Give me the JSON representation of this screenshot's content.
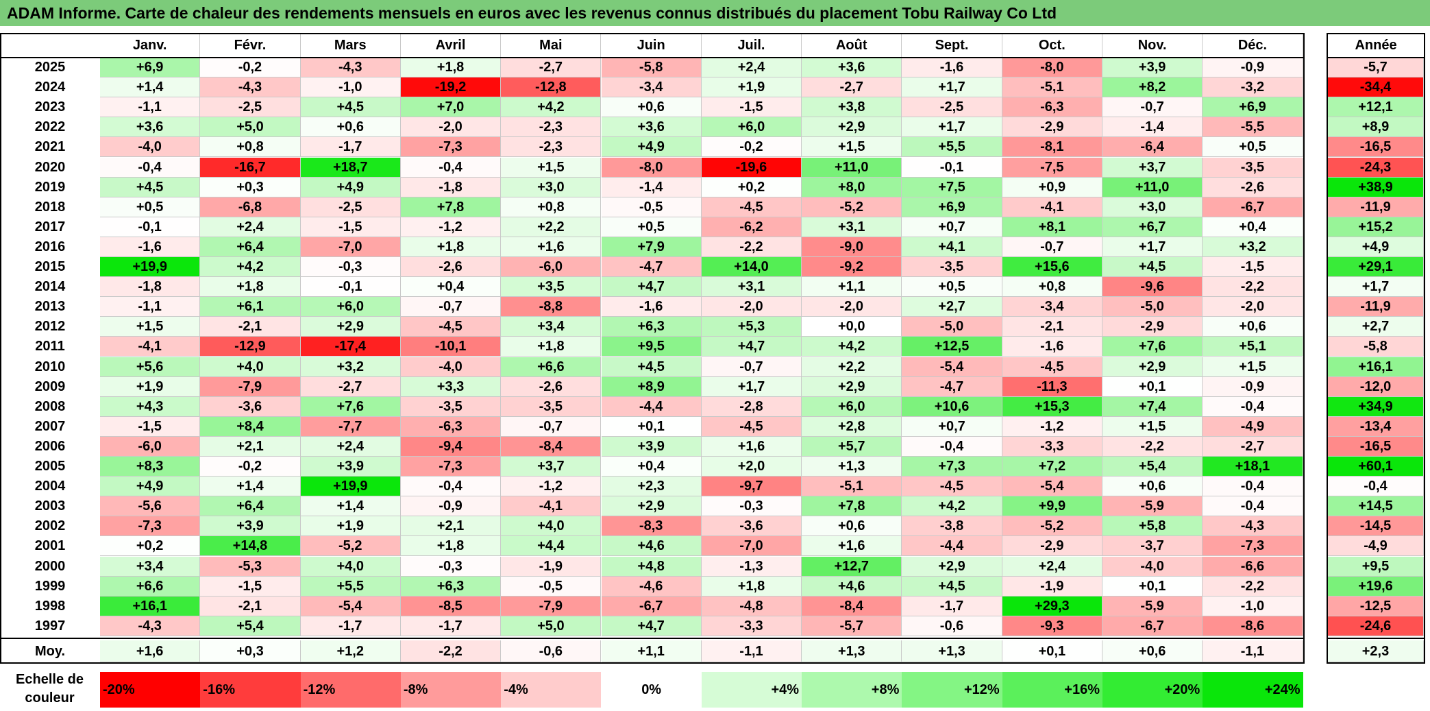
{
  "title": "ADAM Informe. Carte de chaleur des rendements mensuels en euros avec les revenus connus distribués du placement Tobu Railway Co Ltd",
  "chart_data": {
    "type": "heatmap",
    "title": "ADAM Informe. Carte de chaleur des rendements mensuels en euros avec les revenus connus distribués du placement Tobu Railway Co Ltd",
    "months": [
      "Janv.",
      "Févr.",
      "Mars",
      "Avril",
      "Mai",
      "Juin",
      "Juil.",
      "Août",
      "Sept.",
      "Oct.",
      "Nov.",
      "Déc."
    ],
    "year_header": "Année",
    "rows": [
      {
        "year": "2025",
        "values": [
          "+6,9",
          "-0,2",
          "-4,3",
          "+1,8",
          "-2,7",
          "-5,8",
          "+2,4",
          "+3,6",
          "-1,6",
          "-8,0",
          "+3,9",
          "-0,9"
        ],
        "annual": "-5,7"
      },
      {
        "year": "2024",
        "values": [
          "+1,4",
          "-4,3",
          "-1,0",
          "-19,2",
          "-12,8",
          "-3,4",
          "+1,9",
          "-2,7",
          "+1,7",
          "-5,1",
          "+8,2",
          "-3,2"
        ],
        "annual": "-34,4"
      },
      {
        "year": "2023",
        "values": [
          "-1,1",
          "-2,5",
          "+4,5",
          "+7,0",
          "+4,2",
          "+0,6",
          "-1,5",
          "+3,8",
          "-2,5",
          "-6,3",
          "-0,7",
          "+6,9"
        ],
        "annual": "+12,1"
      },
      {
        "year": "2022",
        "values": [
          "+3,6",
          "+5,0",
          "+0,6",
          "-2,0",
          "-2,3",
          "+3,6",
          "+6,0",
          "+2,9",
          "+1,7",
          "-2,9",
          "-1,4",
          "-5,5"
        ],
        "annual": "+8,9"
      },
      {
        "year": "2021",
        "values": [
          "-4,0",
          "+0,8",
          "-1,7",
          "-7,3",
          "-2,3",
          "+4,9",
          "-0,2",
          "+1,5",
          "+5,5",
          "-8,1",
          "-6,4",
          "+0,5"
        ],
        "annual": "-16,5"
      },
      {
        "year": "2020",
        "values": [
          "-0,4",
          "-16,7",
          "+18,7",
          "-0,4",
          "+1,5",
          "-8,0",
          "-19,6",
          "+11,0",
          "-0,1",
          "-7,5",
          "+3,7",
          "-3,5"
        ],
        "annual": "-24,3"
      },
      {
        "year": "2019",
        "values": [
          "+4,5",
          "+0,3",
          "+4,9",
          "-1,8",
          "+3,0",
          "-1,4",
          "+0,2",
          "+8,0",
          "+7,5",
          "+0,9",
          "+11,0",
          "-2,6"
        ],
        "annual": "+38,9"
      },
      {
        "year": "2018",
        "values": [
          "+0,5",
          "-6,8",
          "-2,5",
          "+7,8",
          "+0,8",
          "-0,5",
          "-4,5",
          "-5,2",
          "+6,9",
          "-4,1",
          "+3,0",
          "-6,7"
        ],
        "annual": "-11,9"
      },
      {
        "year": "2017",
        "values": [
          "-0,1",
          "+2,4",
          "-1,5",
          "-1,2",
          "+2,2",
          "+0,5",
          "-6,2",
          "+3,1",
          "+0,7",
          "+8,1",
          "+6,7",
          "+0,4"
        ],
        "annual": "+15,2"
      },
      {
        "year": "2016",
        "values": [
          "-1,6",
          "+6,4",
          "-7,0",
          "+1,8",
          "+1,6",
          "+7,9",
          "-2,2",
          "-9,0",
          "+4,1",
          "-0,7",
          "+1,7",
          "+3,2"
        ],
        "annual": "+4,9"
      },
      {
        "year": "2015",
        "values": [
          "+19,9",
          "+4,2",
          "-0,3",
          "-2,6",
          "-6,0",
          "-4,7",
          "+14,0",
          "-9,2",
          "-3,5",
          "+15,6",
          "+4,5",
          "-1,5"
        ],
        "annual": "+29,1"
      },
      {
        "year": "2014",
        "values": [
          "-1,8",
          "+1,8",
          "-0,1",
          "+0,4",
          "+3,5",
          "+4,7",
          "+3,1",
          "+1,1",
          "+0,5",
          "+0,8",
          "-9,6",
          "-2,2"
        ],
        "annual": "+1,7"
      },
      {
        "year": "2013",
        "values": [
          "-1,1",
          "+6,1",
          "+6,0",
          "-0,7",
          "-8,8",
          "-1,6",
          "-2,0",
          "-2,0",
          "+2,7",
          "-3,4",
          "-5,0",
          "-2,0"
        ],
        "annual": "-11,9"
      },
      {
        "year": "2012",
        "values": [
          "+1,5",
          "-2,1",
          "+2,9",
          "-4,5",
          "+3,4",
          "+6,3",
          "+5,3",
          "+0,0",
          "-5,0",
          "-2,1",
          "-2,9",
          "+0,6"
        ],
        "annual": "+2,7"
      },
      {
        "year": "2011",
        "values": [
          "-4,1",
          "-12,9",
          "-17,4",
          "-10,1",
          "+1,8",
          "+9,5",
          "+4,7",
          "+4,2",
          "+12,5",
          "-1,6",
          "+7,6",
          "+5,1"
        ],
        "annual": "-5,8"
      },
      {
        "year": "2010",
        "values": [
          "+5,6",
          "+4,0",
          "+3,2",
          "-4,0",
          "+6,6",
          "+4,5",
          "-0,7",
          "+2,2",
          "-5,4",
          "-4,5",
          "+2,9",
          "+1,5"
        ],
        "annual": "+16,1"
      },
      {
        "year": "2009",
        "values": [
          "+1,9",
          "-7,9",
          "-2,7",
          "+3,3",
          "-2,6",
          "+8,9",
          "+1,7",
          "+2,9",
          "-4,7",
          "-11,3",
          "+0,1",
          "-0,9"
        ],
        "annual": "-12,0"
      },
      {
        "year": "2008",
        "values": [
          "+4,3",
          "-3,6",
          "+7,6",
          "-3,5",
          "-3,5",
          "-4,4",
          "-2,8",
          "+6,0",
          "+10,6",
          "+15,3",
          "+7,4",
          "-0,4"
        ],
        "annual": "+34,9"
      },
      {
        "year": "2007",
        "values": [
          "-1,5",
          "+8,4",
          "-7,7",
          "-6,3",
          "-0,7",
          "+0,1",
          "-4,5",
          "+2,8",
          "+0,7",
          "-1,2",
          "+1,5",
          "-4,9"
        ],
        "annual": "-13,4"
      },
      {
        "year": "2006",
        "values": [
          "-6,0",
          "+2,1",
          "+2,4",
          "-9,4",
          "-8,4",
          "+3,9",
          "+1,6",
          "+5,7",
          "-0,4",
          "-3,3",
          "-2,2",
          "-2,7"
        ],
        "annual": "-16,5"
      },
      {
        "year": "2005",
        "values": [
          "+8,3",
          "-0,2",
          "+3,9",
          "-7,3",
          "+3,7",
          "+0,4",
          "+2,0",
          "+1,3",
          "+7,3",
          "+7,2",
          "+5,4",
          "+18,1"
        ],
        "annual": "+60,1"
      },
      {
        "year": "2004",
        "values": [
          "+4,9",
          "+1,4",
          "+19,9",
          "-0,4",
          "-1,2",
          "+2,3",
          "-9,7",
          "-5,1",
          "-4,5",
          "-5,4",
          "+0,6",
          "-0,4"
        ],
        "annual": "-0,4"
      },
      {
        "year": "2003",
        "values": [
          "-5,6",
          "+6,4",
          "+1,4",
          "-0,9",
          "-4,1",
          "+2,9",
          "-0,3",
          "+7,8",
          "+4,2",
          "+9,9",
          "-5,9",
          "-0,4"
        ],
        "annual": "+14,5"
      },
      {
        "year": "2002",
        "values": [
          "-7,3",
          "+3,9",
          "+1,9",
          "+2,1",
          "+4,0",
          "-8,3",
          "-3,6",
          "+0,6",
          "-3,8",
          "-5,2",
          "+5,8",
          "-4,3"
        ],
        "annual": "-14,5"
      },
      {
        "year": "2001",
        "values": [
          "+0,2",
          "+14,8",
          "-5,2",
          "+1,8",
          "+4,4",
          "+4,6",
          "-7,0",
          "+1,6",
          "-4,4",
          "-2,9",
          "-3,7",
          "-7,3"
        ],
        "annual": "-4,9"
      },
      {
        "year": "2000",
        "values": [
          "+3,4",
          "-5,3",
          "+4,0",
          "-0,3",
          "-1,9",
          "+4,8",
          "-1,3",
          "+12,7",
          "+2,9",
          "+2,4",
          "-4,0",
          "-6,6"
        ],
        "annual": "+9,5"
      },
      {
        "year": "1999",
        "values": [
          "+6,6",
          "-1,5",
          "+5,5",
          "+6,3",
          "-0,5",
          "-4,6",
          "+1,8",
          "+4,6",
          "+4,5",
          "-1,9",
          "+0,1",
          "-2,2"
        ],
        "annual": "+19,6"
      },
      {
        "year": "1998",
        "values": [
          "+16,1",
          "-2,1",
          "-5,4",
          "-8,5",
          "-7,9",
          "-6,7",
          "-4,8",
          "-8,4",
          "-1,7",
          "+29,3",
          "-5,9",
          "-1,0"
        ],
        "annual": "-12,5"
      },
      {
        "year": "1997",
        "values": [
          "-4,3",
          "+5,4",
          "-1,7",
          "-1,7",
          "+5,0",
          "+4,7",
          "-3,3",
          "-5,7",
          "-0,6",
          "-9,3",
          "-6,7",
          "-8,6"
        ],
        "annual": "-24,6"
      }
    ],
    "average": {
      "label": "Moy.",
      "values": [
        "+1,6",
        "+0,3",
        "+1,2",
        "-2,2",
        "-0,6",
        "+1,1",
        "-1,1",
        "+1,3",
        "+1,3",
        "+0,1",
        "+0,6",
        "-1,1"
      ],
      "annual": "+2,3"
    },
    "color_scale": {
      "label_line1": "Echelle de",
      "label_line2": "couleur",
      "stops": [
        {
          "label": "-20%",
          "color": "#ff0000",
          "align": "left"
        },
        {
          "label": "-16%",
          "color": "#ff3c3c",
          "align": "left"
        },
        {
          "label": "-12%",
          "color": "#ff6b6b",
          "align": "left"
        },
        {
          "label": "-8%",
          "color": "#ff9b9b",
          "align": "left"
        },
        {
          "label": "-4%",
          "color": "#ffcccc",
          "align": "left"
        },
        {
          "label": "0%",
          "color": "#ffffff",
          "align": "center"
        },
        {
          "label": "+4%",
          "color": "#d6fcd6",
          "align": "right"
        },
        {
          "label": "+8%",
          "color": "#adf9ad",
          "align": "right"
        },
        {
          "label": "+12%",
          "color": "#84f584",
          "align": "right"
        },
        {
          "label": "+16%",
          "color": "#5bf05b",
          "align": "right"
        },
        {
          "label": "+20%",
          "color": "#33ec33",
          "align": "right"
        },
        {
          "label": "+24%",
          "color": "#0ae60a",
          "align": "right"
        }
      ]
    },
    "annual_scale_max": 60
  }
}
